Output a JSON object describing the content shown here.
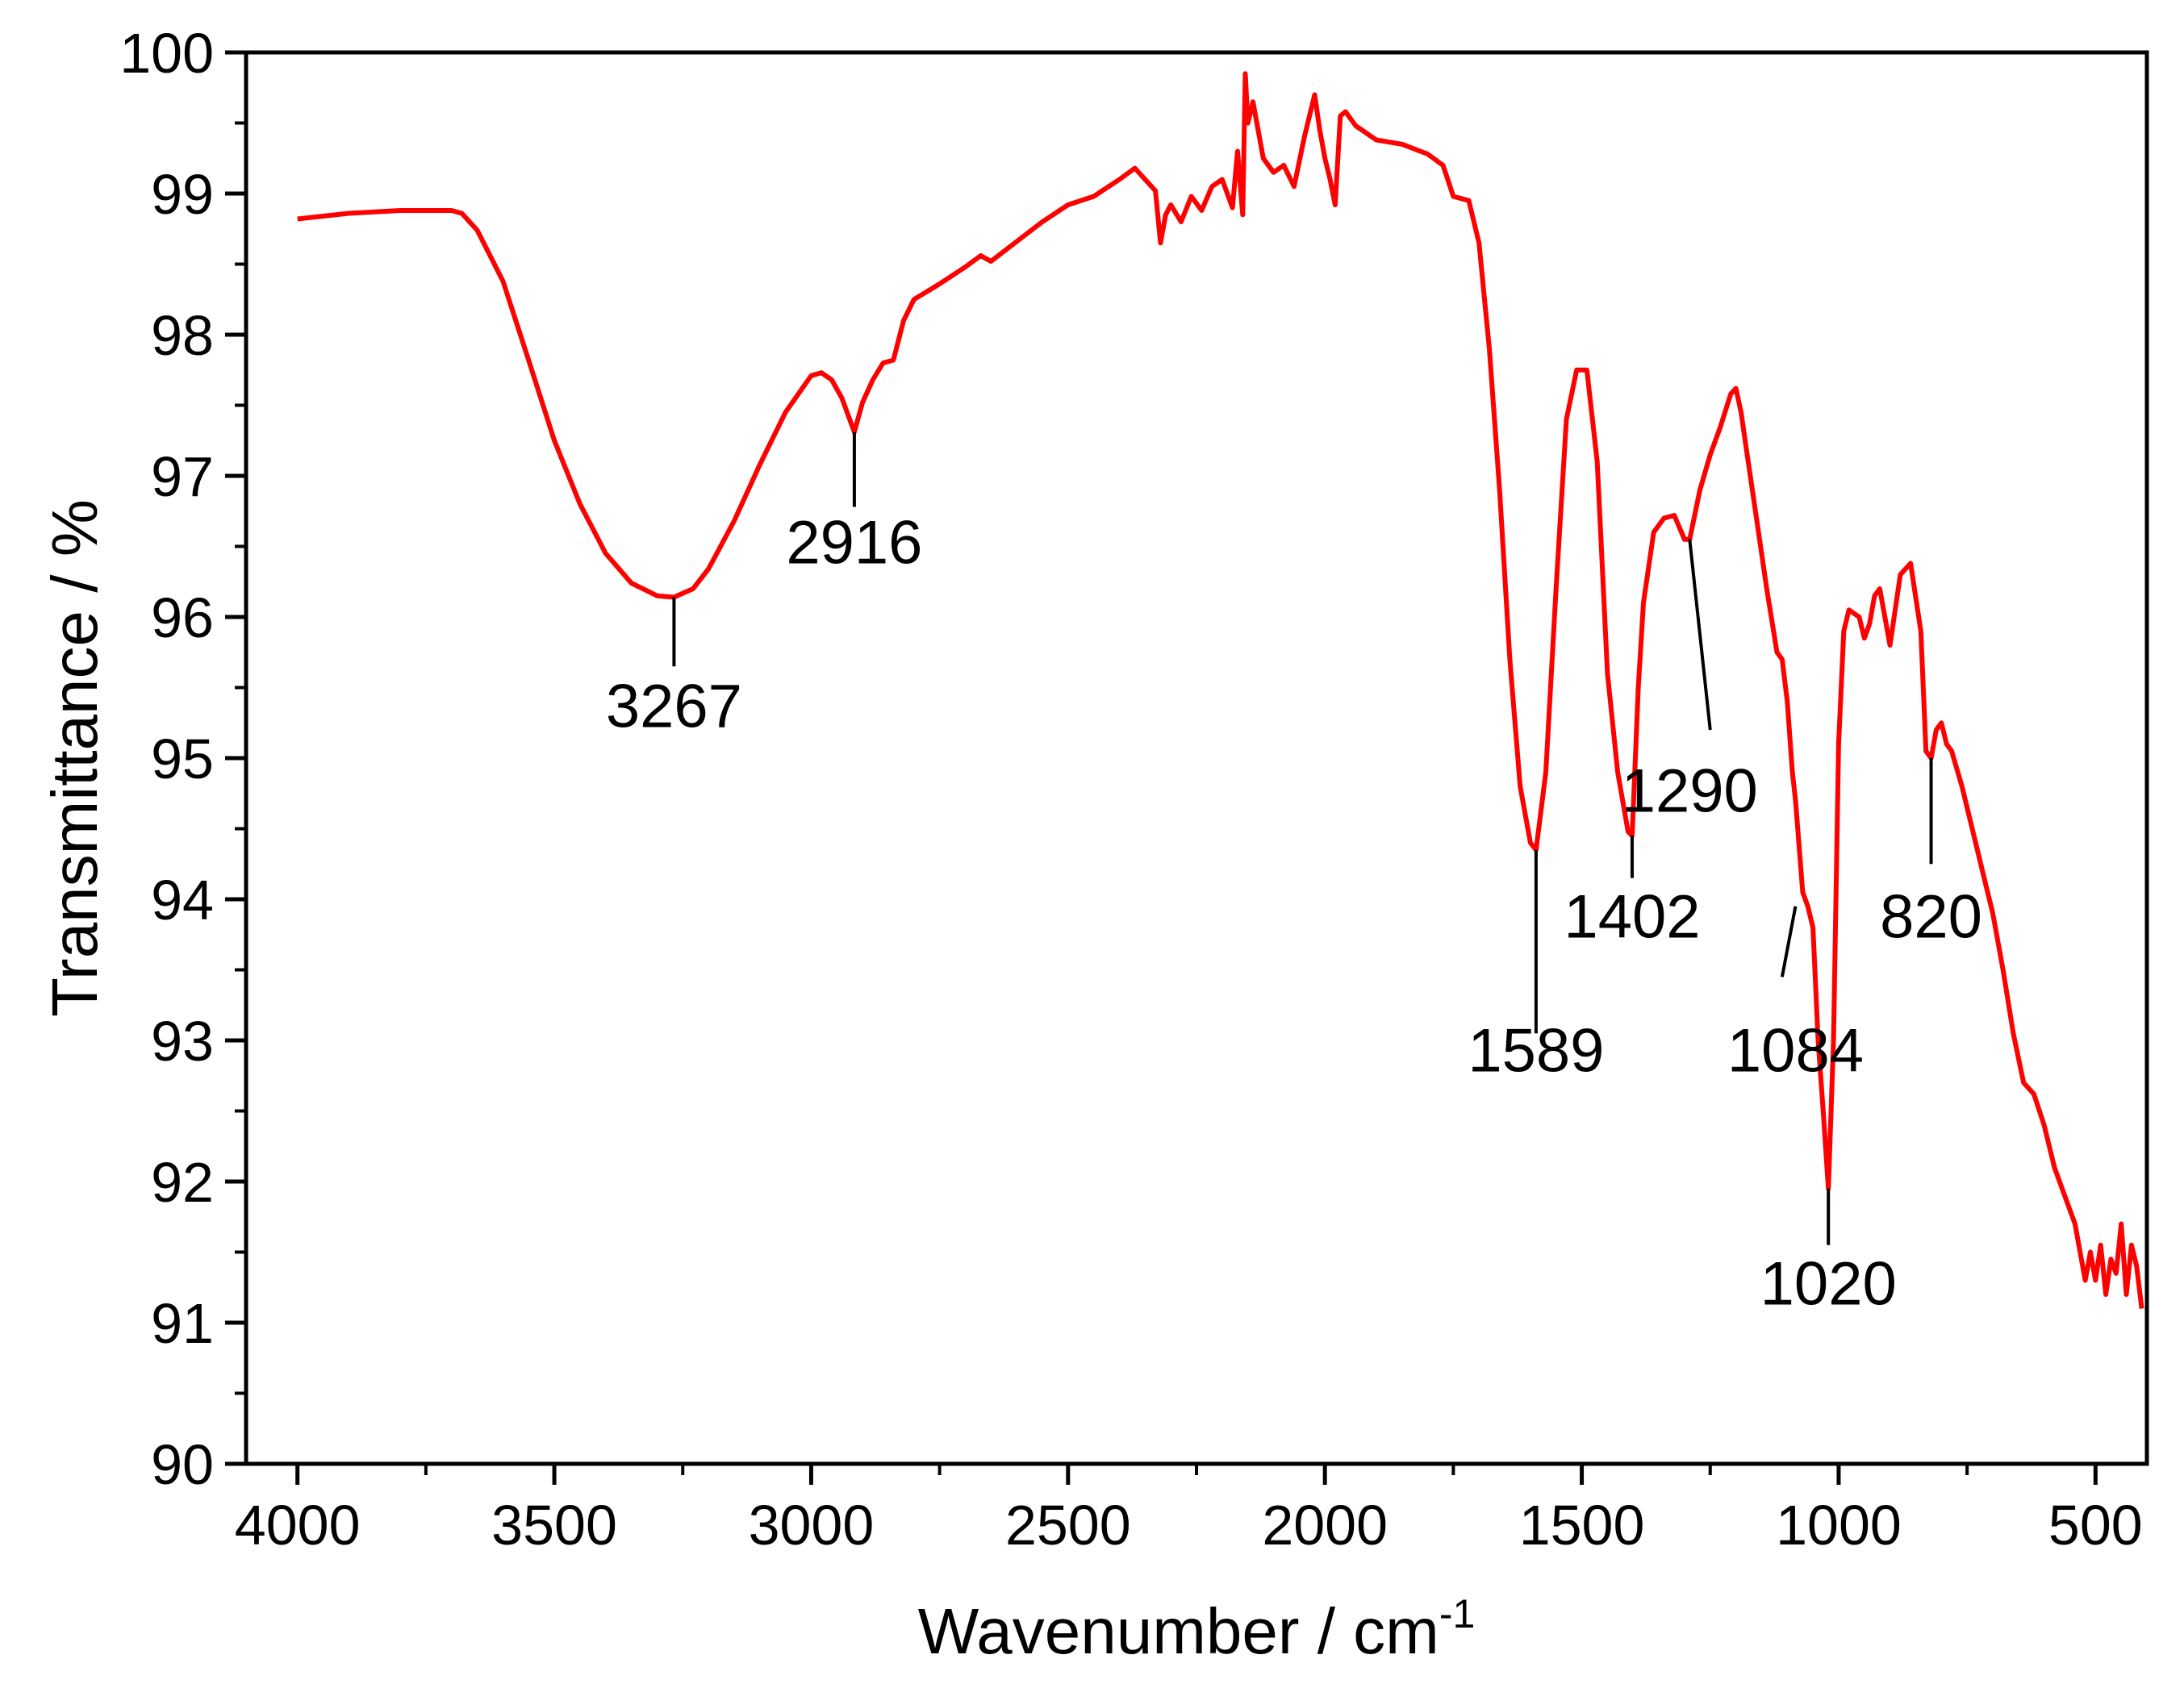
{
  "chart_data": {
    "type": "line",
    "xlabel": "Wavenumber / cm",
    "xlabel_sup": "-1",
    "ylabel": "Transmittance / %",
    "xlim": [
      4100,
      400
    ],
    "ylim": [
      90,
      100
    ],
    "x_reversed": true,
    "grid": false,
    "legend": "none",
    "xticks": [
      4000,
      3500,
      3000,
      2500,
      2000,
      1500,
      1000,
      500
    ],
    "xtick_labels": [
      "4000",
      "3500",
      "3000",
      "2500",
      "2000",
      "1500",
      "1000",
      "500"
    ],
    "yticks": [
      90,
      91,
      92,
      93,
      94,
      95,
      96,
      97,
      98,
      99,
      100
    ],
    "ytick_labels": [
      "90",
      "91",
      "92",
      "93",
      "94",
      "95",
      "96",
      "97",
      "98",
      "99",
      "100"
    ],
    "series": [
      {
        "color": "#ff0000",
        "x": [
          4000,
          3900,
          3800,
          3750,
          3700,
          3680,
          3650,
          3600,
          3550,
          3500,
          3450,
          3400,
          3350,
          3300,
          3267,
          3230,
          3200,
          3150,
          3100,
          3050,
          3000,
          2980,
          2960,
          2940,
          2916,
          2900,
          2880,
          2860,
          2840,
          2820,
          2800,
          2750,
          2700,
          2670,
          2650,
          2600,
          2550,
          2500,
          2450,
          2400,
          2370,
          2350,
          2330,
          2320,
          2310,
          2300,
          2280,
          2260,
          2240,
          2220,
          2200,
          2180,
          2170,
          2160,
          2155,
          2150,
          2140,
          2120,
          2100,
          2080,
          2060,
          2040,
          2020,
          2010,
          2000,
          1990,
          1980,
          1970,
          1960,
          1940,
          1900,
          1850,
          1800,
          1770,
          1750,
          1720,
          1700,
          1680,
          1660,
          1640,
          1620,
          1600,
          1589,
          1570,
          1550,
          1530,
          1510,
          1490,
          1470,
          1450,
          1430,
          1410,
          1402,
          1390,
          1380,
          1360,
          1340,
          1320,
          1300,
          1290,
          1270,
          1250,
          1230,
          1210,
          1200,
          1190,
          1180,
          1160,
          1140,
          1120,
          1110,
          1100,
          1090,
          1084,
          1070,
          1060,
          1050,
          1040,
          1030,
          1020,
          1010,
          1000,
          990,
          980,
          960,
          950,
          940,
          930,
          920,
          900,
          880,
          860,
          840,
          830,
          820,
          810,
          800,
          790,
          780,
          760,
          740,
          720,
          700,
          680,
          660,
          640,
          620,
          600,
          580,
          560,
          540,
          520,
          510,
          500,
          490,
          480,
          470,
          460,
          450,
          440,
          430,
          420,
          410
        ],
        "y": [
          98.82,
          98.86,
          98.88,
          98.88,
          98.88,
          98.86,
          98.74,
          98.38,
          97.82,
          97.25,
          96.8,
          96.45,
          96.24,
          96.15,
          96.14,
          96.2,
          96.34,
          96.68,
          97.08,
          97.45,
          97.71,
          97.73,
          97.68,
          97.55,
          97.31,
          97.52,
          97.68,
          97.8,
          97.82,
          98.1,
          98.25,
          98.36,
          98.48,
          98.56,
          98.52,
          98.66,
          98.8,
          98.92,
          98.98,
          99.1,
          99.18,
          99.1,
          99.02,
          98.65,
          98.85,
          98.92,
          98.8,
          98.98,
          98.88,
          99.05,
          99.1,
          98.9,
          99.3,
          98.85,
          99.85,
          99.5,
          99.65,
          99.25,
          99.15,
          99.2,
          99.05,
          99.4,
          99.7,
          99.45,
          99.25,
          99.1,
          98.92,
          99.55,
          99.58,
          99.48,
          99.38,
          99.35,
          99.28,
          99.2,
          98.98,
          98.95,
          98.65,
          97.9,
          96.9,
          95.7,
          94.8,
          94.4,
          94.35,
          94.9,
          96.2,
          97.4,
          97.75,
          97.75,
          97.1,
          95.6,
          94.9,
          94.48,
          94.45,
          95.5,
          96.1,
          96.6,
          96.7,
          96.72,
          96.55,
          96.55,
          96.9,
          97.15,
          97.35,
          97.58,
          97.62,
          97.45,
          97.2,
          96.7,
          96.2,
          95.75,
          95.7,
          95.4,
          94.9,
          94.7,
          94.05,
          93.95,
          93.8,
          93.0,
          92.5,
          91.95,
          93.0,
          95.1,
          95.9,
          96.05,
          96.0,
          95.85,
          95.95,
          96.15,
          96.2,
          95.8,
          96.3,
          96.38,
          95.9,
          95.05,
          95.0,
          95.2,
          95.25,
          95.1,
          95.05,
          94.8,
          94.5,
          94.2,
          93.9,
          93.5,
          93.05,
          92.7,
          92.62,
          92.4,
          92.1,
          91.9,
          91.7,
          91.3,
          91.5,
          91.3,
          91.55,
          91.2,
          91.45,
          91.35,
          91.7,
          91.2,
          91.55,
          91.4,
          91.1
        ]
      }
    ],
    "annotations": [
      {
        "label": "3267",
        "x": 3267,
        "y": 96.14,
        "label_x": 3267,
        "label_y": 95.22,
        "line_to_x": 3267,
        "line_to_y": 95.65
      },
      {
        "label": "2916",
        "x": 2916,
        "y": 97.31,
        "label_x": 2916,
        "label_y": 96.38,
        "line_to_x": 2916,
        "line_to_y": 96.78
      },
      {
        "label": "1589",
        "x": 1589,
        "y": 94.35,
        "label_x": 1589,
        "label_y": 92.78,
        "line_to_x": 1589,
        "line_to_y": 93.05
      },
      {
        "label": "1402",
        "x": 1402,
        "y": 94.45,
        "label_x": 1402,
        "label_y": 93.73,
        "line_to_x": 1402,
        "line_to_y": 94.15
      },
      {
        "label": "1290",
        "x": 1290,
        "y": 96.55,
        "label_x": 1290,
        "label_y": 94.62,
        "line_to_x": 1250,
        "line_to_y": 95.2
      },
      {
        "label": "1084",
        "x": 1084,
        "y": 93.95,
        "label_x": 1084,
        "label_y": 92.78,
        "line_to_x": 1110,
        "line_to_y": 93.45
      },
      {
        "label": "1020",
        "x": 1020,
        "y": 91.95,
        "label_x": 1020,
        "label_y": 91.13,
        "line_to_x": 1020,
        "line_to_y": 91.55
      },
      {
        "label": "820",
        "x": 820,
        "y": 95.0,
        "label_x": 820,
        "label_y": 93.73,
        "line_to_x": 820,
        "line_to_y": 94.25
      }
    ]
  }
}
